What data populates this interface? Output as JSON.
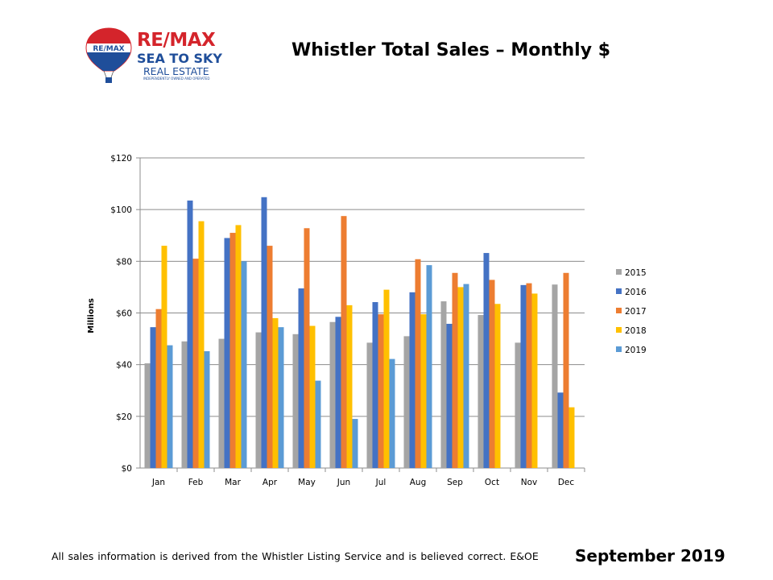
{
  "logo": {
    "balloon_text": "RE/MAX",
    "line1": "RE/MAX",
    "line2": "SEA TO SKY",
    "line3": "REAL ESTATE",
    "line4": "INDEPENDENTLY OWNED AND OPERATED"
  },
  "title": "Whistler Total Sales – Monthly $",
  "footer": {
    "note": "All sales information is derived from the Whistler Listing Service and is believed correct. E&OE",
    "date": "September 2019"
  },
  "chart_data": {
    "type": "bar",
    "title": "Whistler Total Sales – Monthly $",
    "xlabel": "",
    "ylabel": "Millions",
    "ylim": [
      0,
      120
    ],
    "yticks": [
      0,
      20,
      40,
      60,
      80,
      100,
      120
    ],
    "ytick_labels": [
      "$0",
      "$20",
      "$40",
      "$60",
      "$80",
      "$100",
      "$120"
    ],
    "grid": true,
    "legend_position": "right",
    "categories": [
      "Jan",
      "Feb",
      "Mar",
      "Apr",
      "May",
      "Jun",
      "Jul",
      "Aug",
      "Sep",
      "Oct",
      "Nov",
      "Dec"
    ],
    "series": [
      {
        "name": "2015",
        "color": "#a5a5a5",
        "values": [
          40.5,
          49,
          50,
          52.5,
          51.8,
          56.5,
          48.5,
          51,
          64.5,
          59.2,
          48.5,
          71
        ]
      },
      {
        "name": "2016",
        "color": "#4472c4",
        "values": [
          54.5,
          103.5,
          89,
          104.8,
          69.5,
          58.5,
          64.2,
          68,
          55.8,
          83.2,
          70.8,
          29.2
        ]
      },
      {
        "name": "2017",
        "color": "#ed7d31",
        "values": [
          61.5,
          81,
          91,
          86,
          92.8,
          97.5,
          59.5,
          80.8,
          75.5,
          72.8,
          71.5,
          75.5
        ]
      },
      {
        "name": "2018",
        "color": "#ffc000",
        "values": [
          86,
          95.5,
          94,
          58,
          55,
          63,
          69,
          59.5,
          70,
          63.5,
          67.5,
          23.5
        ]
      },
      {
        "name": "2019",
        "color": "#5b9bd5",
        "values": [
          47.5,
          45.2,
          80,
          54.5,
          33.8,
          19,
          42.2,
          78.5,
          71.2,
          null,
          null,
          null
        ]
      }
    ]
  }
}
